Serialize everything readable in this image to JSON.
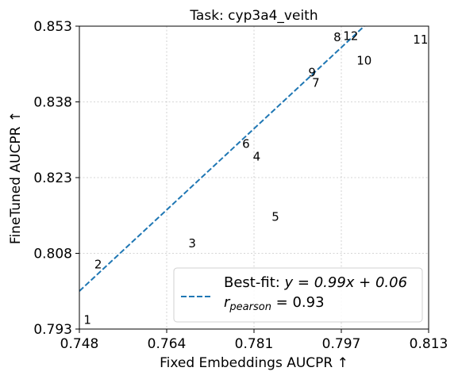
{
  "chart_data": {
    "type": "scatter",
    "title": "Task: cyp3a4_veith",
    "xlabel": "Fixed Embeddings AUCPR ↑",
    "ylabel": "FineTuned AUCPR ↑",
    "xlim": [
      0.748,
      0.813
    ],
    "ylim": [
      0.793,
      0.853
    ],
    "x_ticks": [
      "0.748",
      "0.764",
      "0.781",
      "0.797",
      "0.813"
    ],
    "y_ticks": [
      "0.793",
      "0.808",
      "0.823",
      "0.838",
      "0.853"
    ],
    "grid": true,
    "points": [
      {
        "label": "1",
        "x": 0.7495,
        "y": 0.7948
      },
      {
        "label": "2",
        "x": 0.7515,
        "y": 0.8058
      },
      {
        "label": "3",
        "x": 0.769,
        "y": 0.81
      },
      {
        "label": "4",
        "x": 0.781,
        "y": 0.8272
      },
      {
        "label": "5",
        "x": 0.7845,
        "y": 0.8152
      },
      {
        "label": "6",
        "x": 0.779,
        "y": 0.8297
      },
      {
        "label": "7",
        "x": 0.792,
        "y": 0.8418
      },
      {
        "label": "8",
        "x": 0.796,
        "y": 0.8508
      },
      {
        "label": "9",
        "x": 0.7913,
        "y": 0.8438
      },
      {
        "label": "10",
        "x": 0.801,
        "y": 0.8462
      },
      {
        "label": "11",
        "x": 0.8115,
        "y": 0.8503
      },
      {
        "label": "12",
        "x": 0.7985,
        "y": 0.851
      }
    ],
    "fit_line": {
      "slope": 0.99,
      "intercept": 0.06,
      "color": "#1f77b4",
      "style": "dashed"
    },
    "legend": {
      "position": "lower-right",
      "fit_prefix": "Best-fit: ",
      "fit_equation": "y = 0.99x + 0.06",
      "r_symbol": "r",
      "r_subscript": "pearson",
      "r_value": " = 0.93"
    }
  }
}
